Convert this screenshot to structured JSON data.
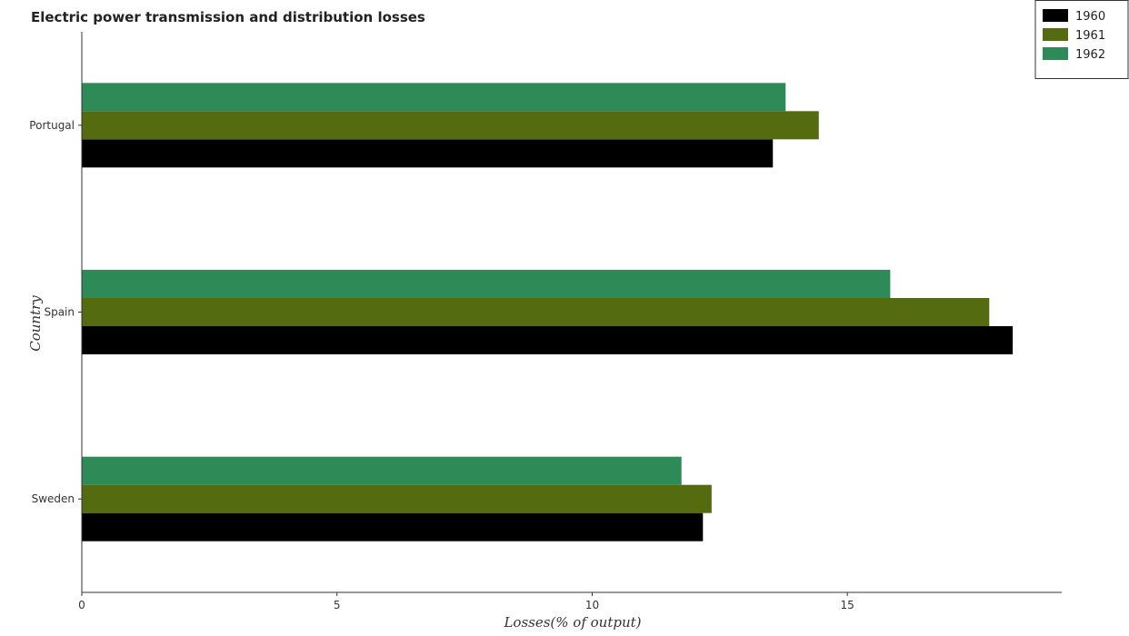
{
  "chart_data": {
    "type": "bar",
    "orientation": "horizontal",
    "title": "Electric power transmission and distribution losses",
    "xlabel": "Losses(% of output)",
    "ylabel": "Country",
    "categories": [
      "Portugal",
      "Spain",
      "Sweden"
    ],
    "series": [
      {
        "name": "1960",
        "color": "#000000",
        "values": [
          13.54,
          18.24,
          12.17
        ]
      },
      {
        "name": "1961",
        "color": "#556b0f",
        "values": [
          14.44,
          17.78,
          12.34
        ]
      },
      {
        "name": "1962",
        "color": "#2e8b57",
        "values": [
          13.79,
          15.84,
          11.75
        ]
      }
    ],
    "xlim": [
      0,
      19.2
    ],
    "xticks": [
      0,
      5,
      10,
      15
    ],
    "xtick_labels": [
      "0",
      "5",
      "10",
      "15"
    ],
    "grid": false,
    "legend_position": "top-right"
  }
}
